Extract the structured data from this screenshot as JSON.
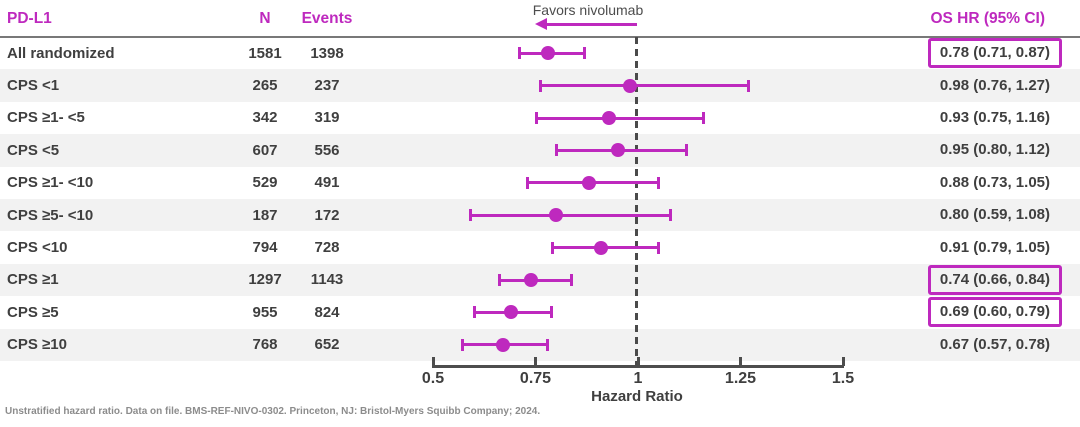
{
  "colors": {
    "accent": "#be29be",
    "text": "#3f3f3f",
    "stripe": "#f2f2f2",
    "axis": "#4d4d4d",
    "footnote_gray": "#8c8c8c"
  },
  "header": {
    "pdl1": "PD-L1",
    "n": "N",
    "events": "Events",
    "os_hr": "OS HR (95% CI)"
  },
  "favors_label": "Favors nivolumab",
  "footnote": "Unstratified hazard ratio. Data on file. BMS-REF-NIVO-0302. Princeton, NJ: Bristol-Myers Squibb Company; 2024.",
  "chart_data": {
    "type": "forest",
    "xlabel": "Hazard Ratio",
    "x_axis": {
      "min": 0.5,
      "max": 1.5,
      "ticks": [
        0.5,
        0.75,
        1,
        1.25,
        1.5
      ],
      "tick_labels": [
        "0.5",
        "0.75",
        "1",
        "1.25",
        "1.5"
      ],
      "reference_line": 1
    },
    "columns": [
      "PD-L1",
      "N",
      "Events",
      "OS HR (95% CI)"
    ],
    "rows": [
      {
        "label": "All randomized",
        "n": "1581",
        "events": "1398",
        "hr": 0.78,
        "ci_low": 0.71,
        "ci_high": 0.87,
        "hr_text": "0.78 (0.71, 0.87)",
        "highlighted": true
      },
      {
        "label": "CPS <1",
        "n": "265",
        "events": "237",
        "hr": 0.98,
        "ci_low": 0.76,
        "ci_high": 1.27,
        "hr_text": "0.98 (0.76, 1.27)",
        "highlighted": false
      },
      {
        "label": "CPS ≥1- <5",
        "n": "342",
        "events": "319",
        "hr": 0.93,
        "ci_low": 0.75,
        "ci_high": 1.16,
        "hr_text": "0.93 (0.75, 1.16)",
        "highlighted": false
      },
      {
        "label": "CPS <5",
        "n": "607",
        "events": "556",
        "hr": 0.95,
        "ci_low": 0.8,
        "ci_high": 1.12,
        "hr_text": "0.95 (0.80, 1.12)",
        "highlighted": false
      },
      {
        "label": "CPS ≥1- <10",
        "n": "529",
        "events": "491",
        "hr": 0.88,
        "ci_low": 0.73,
        "ci_high": 1.05,
        "hr_text": "0.88 (0.73, 1.05)",
        "highlighted": false
      },
      {
        "label": "CPS ≥5- <10",
        "n": "187",
        "events": "172",
        "hr": 0.8,
        "ci_low": 0.59,
        "ci_high": 1.08,
        "hr_text": "0.80 (0.59, 1.08)",
        "highlighted": false
      },
      {
        "label": "CPS <10",
        "n": "794",
        "events": "728",
        "hr": 0.91,
        "ci_low": 0.79,
        "ci_high": 1.05,
        "hr_text": "0.91 (0.79, 1.05)",
        "highlighted": false
      },
      {
        "label": "CPS ≥1",
        "n": "1297",
        "events": "1143",
        "hr": 0.74,
        "ci_low": 0.66,
        "ci_high": 0.84,
        "hr_text": "0.74 (0.66, 0.84)",
        "highlighted": true
      },
      {
        "label": "CPS ≥5",
        "n": "955",
        "events": "824",
        "hr": 0.69,
        "ci_low": 0.6,
        "ci_high": 0.79,
        "hr_text": "0.69 (0.60, 0.79)",
        "highlighted": true
      },
      {
        "label": "CPS ≥10",
        "n": "768",
        "events": "652",
        "hr": 0.67,
        "ci_low": 0.57,
        "ci_high": 0.78,
        "hr_text": "0.67 (0.57, 0.78)",
        "highlighted": false
      }
    ]
  }
}
